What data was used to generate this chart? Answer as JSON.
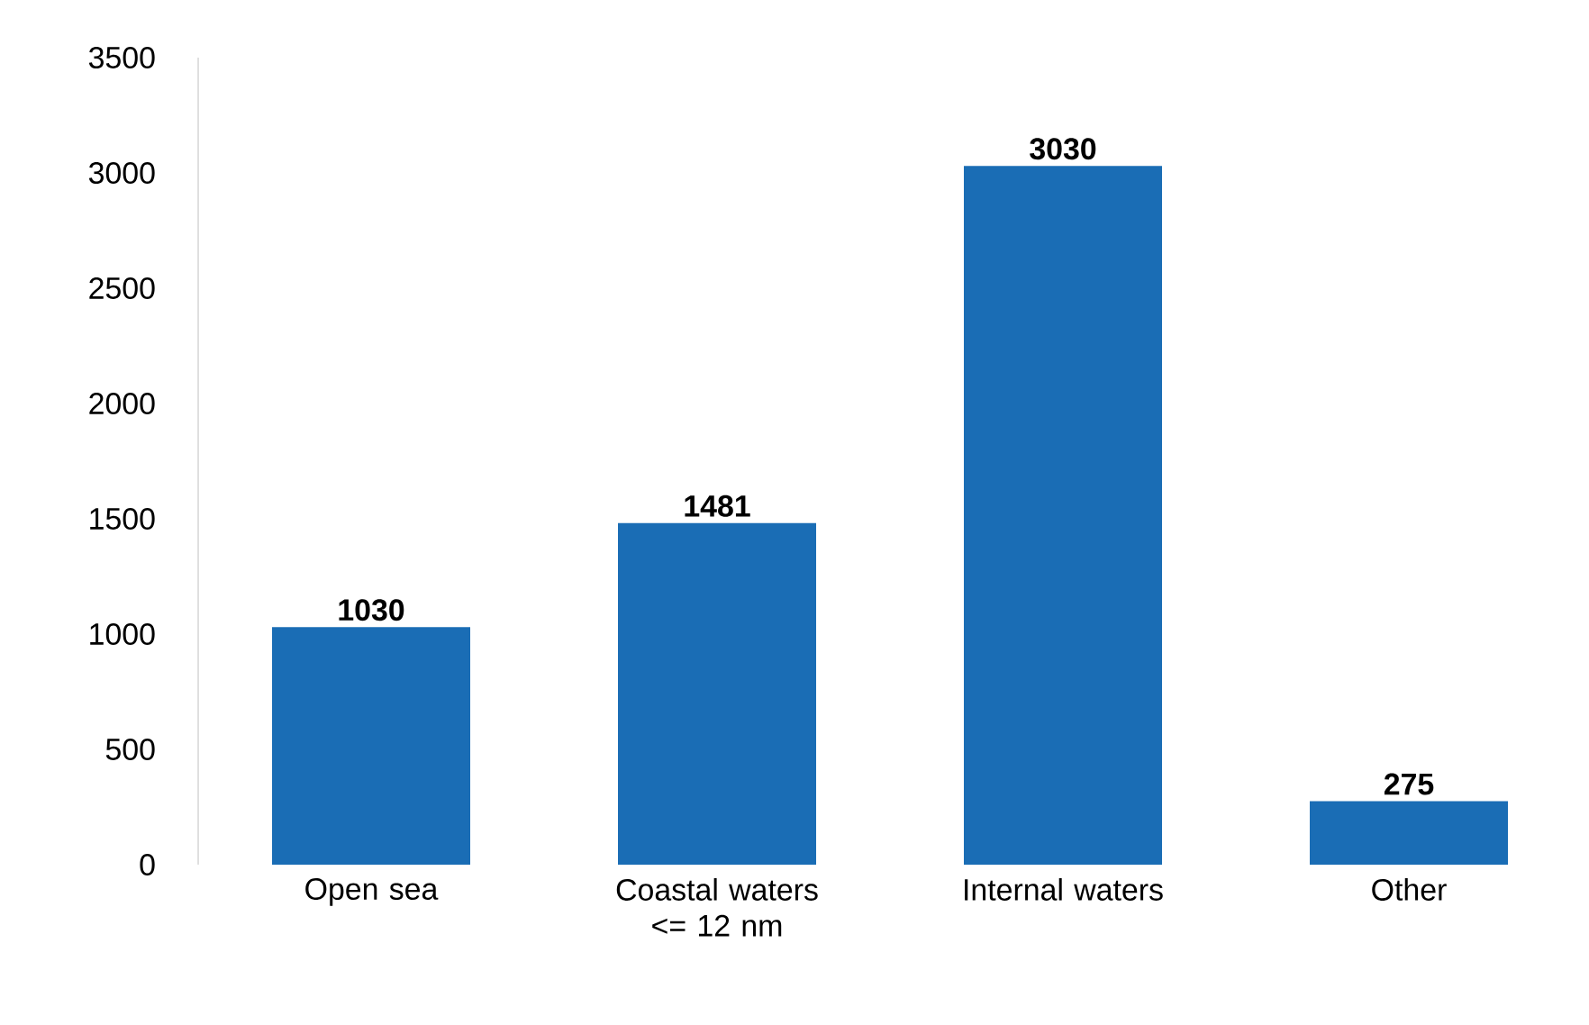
{
  "chart_data": {
    "type": "bar",
    "categories": [
      "Open sea",
      "Coastal waters <= 12 nm",
      "Internal waters",
      "Other"
    ],
    "values": [
      1030,
      1481,
      3030,
      275
    ],
    "color": "#1a6db5",
    "ylim": [
      0,
      3500
    ],
    "yticks": [
      0,
      500,
      1000,
      1500,
      2000,
      2500,
      3000,
      3500
    ],
    "data_labels": true,
    "grid": false
  }
}
